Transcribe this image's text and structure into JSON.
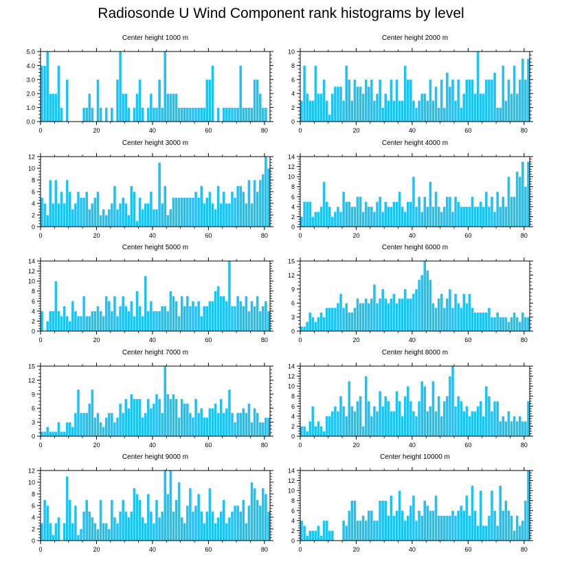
{
  "title": "Radiosonde U Wind Component rank histograms by level",
  "colors": {
    "bar": "#1ec2f5",
    "bar_edge": "#ffffff",
    "axis": "#000000"
  },
  "chart_data": [
    {
      "type": "bar",
      "title": "Center height 1000 m",
      "xlim": [
        0,
        82
      ],
      "ylim": [
        0,
        5
      ],
      "xticks": [
        0,
        20,
        40,
        60,
        80
      ],
      "yticks": [
        0,
        1,
        2,
        3,
        4,
        5
      ],
      "ytick_labels": [
        "0.0",
        "1.0",
        "2.0",
        "3.0",
        "4.0",
        "5.0"
      ],
      "values": [
        4,
        4,
        5,
        2,
        2,
        2,
        4,
        1,
        0,
        3,
        0,
        0,
        0,
        0,
        0,
        1,
        1,
        2,
        1,
        0,
        3,
        1,
        0,
        1,
        0,
        1,
        0,
        3,
        5,
        2,
        2,
        1,
        0,
        1,
        2,
        3,
        1,
        0,
        1,
        2,
        1,
        1,
        3,
        1,
        5,
        2,
        2,
        2,
        2,
        1,
        1,
        1,
        1,
        1,
        1,
        1,
        1,
        1,
        1,
        3,
        3,
        4,
        0,
        1,
        0,
        1,
        1,
        1,
        1,
        1,
        1,
        4,
        1,
        1,
        1,
        1,
        3,
        3,
        2,
        1,
        1,
        0
      ]
    },
    {
      "type": "bar",
      "title": "Center height 2000 m",
      "xlim": [
        0,
        82
      ],
      "ylim": [
        0,
        10
      ],
      "xticks": [
        0,
        20,
        40,
        60,
        80
      ],
      "yticks": [
        0,
        2,
        4,
        6,
        8,
        10
      ],
      "ytick_labels": [
        "0",
        "2",
        "4",
        "6",
        "8",
        "10"
      ],
      "values": [
        3,
        8,
        4,
        3,
        3,
        8,
        4,
        4,
        6,
        3,
        1,
        4,
        5,
        5,
        5,
        3,
        8,
        6,
        3,
        6,
        5,
        5,
        4,
        6,
        5,
        6,
        3,
        4,
        6,
        2,
        4,
        3,
        6,
        3,
        6,
        3,
        3,
        8,
        6,
        6,
        3,
        2,
        3,
        4,
        4,
        3,
        6,
        3,
        5,
        2,
        6,
        2,
        7,
        5,
        6,
        3,
        6,
        2,
        4,
        6,
        6,
        6,
        4,
        10,
        4,
        4,
        6,
        6,
        6,
        7,
        2,
        2,
        8,
        3,
        6,
        4,
        8,
        4,
        6,
        9,
        6,
        9
      ]
    },
    {
      "type": "bar",
      "title": "Center height 3000 m",
      "xlim": [
        0,
        82
      ],
      "ylim": [
        0,
        12
      ],
      "xticks": [
        0,
        20,
        40,
        60,
        80
      ],
      "yticks": [
        0,
        2,
        4,
        6,
        8,
        10,
        12
      ],
      "ytick_labels": [
        "0",
        "2",
        "4",
        "6",
        "8",
        "10",
        "12"
      ],
      "values": [
        5,
        4,
        2,
        8,
        4,
        8,
        4,
        6,
        4,
        8,
        6,
        3,
        4,
        6,
        5,
        5,
        6,
        3,
        4,
        5,
        6,
        2,
        3,
        2,
        3,
        4,
        7,
        3,
        4,
        5,
        4,
        2,
        7,
        6,
        1,
        5,
        3,
        4,
        4,
        6,
        3,
        3,
        11,
        4,
        7,
        2,
        3,
        5,
        5,
        5,
        5,
        5,
        5,
        5,
        5,
        6,
        5,
        7,
        4,
        5,
        6,
        4,
        3,
        7,
        4,
        6,
        4,
        4,
        6,
        5,
        7,
        7,
        6,
        4,
        8,
        4,
        8,
        6,
        8,
        9,
        12,
        10
      ]
    },
    {
      "type": "bar",
      "title": "Center height 4000 m",
      "xlim": [
        0,
        82
      ],
      "ylim": [
        0,
        14
      ],
      "xticks": [
        0,
        20,
        40,
        60,
        80
      ],
      "yticks": [
        0,
        2,
        4,
        6,
        8,
        10,
        12,
        14
      ],
      "ytick_labels": [
        "0",
        "2",
        "4",
        "6",
        "8",
        "10",
        "12",
        "14"
      ],
      "values": [
        2,
        5,
        5,
        5,
        2,
        3,
        3,
        4,
        9,
        5,
        4,
        2,
        3,
        4,
        3,
        7,
        5,
        5,
        4,
        4,
        6,
        6,
        3,
        5,
        4,
        4,
        3,
        5,
        6,
        3,
        5,
        4,
        4,
        5,
        5,
        7,
        4,
        3,
        5,
        5,
        10,
        4,
        6,
        3,
        6,
        4,
        9,
        4,
        7,
        4,
        3,
        4,
        6,
        6,
        3,
        6,
        5,
        4,
        4,
        4,
        4,
        6,
        4,
        4,
        5,
        4,
        7,
        4,
        6,
        3,
        7,
        4,
        6,
        4,
        10,
        6,
        6,
        11,
        10,
        13,
        8,
        13
      ]
    },
    {
      "type": "bar",
      "title": "Center height 5000 m",
      "xlim": [
        0,
        82
      ],
      "ylim": [
        0,
        14
      ],
      "xticks": [
        0,
        20,
        40,
        60,
        80
      ],
      "yticks": [
        0,
        2,
        4,
        6,
        8,
        10,
        12,
        14
      ],
      "ytick_labels": [
        "0",
        "2",
        "4",
        "6",
        "8",
        "10",
        "12",
        "14"
      ],
      "values": [
        4,
        0,
        2,
        4,
        4,
        10,
        4,
        3,
        5,
        3,
        2,
        6,
        4,
        3,
        3,
        7,
        3,
        3,
        4,
        4,
        5,
        4,
        3,
        7,
        6,
        4,
        7,
        3,
        5,
        7,
        5,
        4,
        6,
        3,
        8,
        5,
        3,
        11,
        4,
        6,
        4,
        4,
        4,
        5,
        5,
        4,
        8,
        7,
        6,
        3,
        7,
        5,
        7,
        5,
        6,
        5,
        6,
        3,
        5,
        5,
        6,
        6,
        8,
        9,
        7,
        7,
        6,
        14,
        5,
        5,
        7,
        6,
        5,
        7,
        4,
        6,
        5,
        7,
        4,
        5,
        6,
        4
      ]
    },
    {
      "type": "bar",
      "title": "Center height 6000 m",
      "xlim": [
        0,
        82
      ],
      "ylim": [
        0,
        15
      ],
      "xticks": [
        0,
        20,
        40,
        60,
        80
      ],
      "yticks": [
        0,
        3,
        6,
        9,
        12,
        15
      ],
      "ytick_labels": [
        "0",
        "3",
        "6",
        "9",
        "12",
        "15"
      ],
      "values": [
        1,
        1,
        2,
        4,
        3,
        2,
        3,
        4,
        3,
        5,
        5,
        5,
        5,
        6,
        8,
        5,
        6,
        4,
        4,
        5,
        7,
        6,
        6,
        7,
        6,
        7,
        10,
        6,
        7,
        9,
        7,
        6,
        7,
        8,
        6,
        7,
        7,
        9,
        7,
        7,
        8,
        9,
        11,
        12,
        15,
        13,
        11,
        6,
        5,
        7,
        8,
        5,
        7,
        9,
        5,
        8,
        6,
        5,
        8,
        6,
        8,
        5,
        4,
        4,
        4,
        4,
        4,
        5,
        3,
        3,
        4,
        3,
        3,
        3,
        2,
        3,
        4,
        3,
        2,
        4,
        3,
        3
      ]
    },
    {
      "type": "bar",
      "title": "Center height 7000 m",
      "xlim": [
        0,
        82
      ],
      "ylim": [
        0,
        15
      ],
      "xticks": [
        0,
        20,
        40,
        60,
        80
      ],
      "yticks": [
        0,
        3,
        6,
        9,
        12,
        15
      ],
      "ytick_labels": [
        "0",
        "3",
        "6",
        "9",
        "12",
        "15"
      ],
      "values": [
        1,
        1,
        2,
        1,
        1,
        1,
        3,
        1,
        1,
        3,
        3,
        2,
        5,
        10,
        5,
        5,
        5,
        7,
        10,
        4,
        5,
        3,
        2,
        4,
        5,
        5,
        3,
        4,
        7,
        5,
        8,
        6,
        9,
        8,
        8,
        8,
        4,
        5,
        8,
        6,
        7,
        9,
        8,
        5,
        15,
        9,
        8,
        9,
        8,
        4,
        8,
        7,
        7,
        5,
        4,
        8,
        5,
        6,
        4,
        4,
        6,
        6,
        7,
        5,
        8,
        5,
        6,
        10,
        5,
        3,
        5,
        5,
        6,
        5,
        7,
        3,
        6,
        5,
        3,
        3,
        4,
        4
      ]
    },
    {
      "type": "bar",
      "title": "Center height 8000 m",
      "xlim": [
        0,
        82
      ],
      "ylim": [
        0,
        14
      ],
      "xticks": [
        0,
        20,
        40,
        60,
        80
      ],
      "yticks": [
        0,
        2,
        4,
        6,
        8,
        10,
        12,
        14
      ],
      "ytick_labels": [
        "0",
        "2",
        "4",
        "6",
        "8",
        "10",
        "12",
        "14"
      ],
      "values": [
        2,
        2,
        1,
        3,
        6,
        2,
        3,
        2,
        1,
        4,
        4,
        5,
        6,
        5,
        8,
        6,
        4,
        11,
        6,
        5,
        7,
        8,
        2,
        12,
        7,
        4,
        6,
        5,
        9,
        6,
        8,
        7,
        5,
        5,
        9,
        7,
        4,
        8,
        10,
        7,
        5,
        4,
        7,
        11,
        10,
        5,
        6,
        11,
        5,
        8,
        4,
        7,
        8,
        12,
        14,
        6,
        8,
        7,
        5,
        6,
        4,
        5,
        5,
        6,
        7,
        4,
        10,
        8,
        5,
        7,
        7,
        3,
        4,
        3,
        5,
        3,
        4,
        3,
        4,
        3,
        3,
        7
      ]
    },
    {
      "type": "bar",
      "title": "Center height 9000 m",
      "xlim": [
        0,
        82
      ],
      "ylim": [
        0,
        12
      ],
      "xticks": [
        0,
        20,
        40,
        60,
        80
      ],
      "yticks": [
        0,
        2,
        4,
        6,
        8,
        10,
        12
      ],
      "ytick_labels": [
        "0",
        "2",
        "4",
        "6",
        "8",
        "10",
        "12"
      ],
      "values": [
        3,
        7,
        6,
        3,
        1,
        3,
        4,
        0,
        3,
        11,
        7,
        3,
        6,
        1,
        2,
        5,
        7,
        5,
        4,
        3,
        2,
        7,
        3,
        3,
        2,
        7,
        4,
        3,
        5,
        7,
        5,
        4,
        5,
        9,
        8,
        7,
        4,
        3,
        8,
        5,
        3,
        7,
        4,
        5,
        12,
        8,
        12,
        5,
        7,
        10,
        4,
        3,
        6,
        9,
        5,
        6,
        8,
        5,
        3,
        5,
        9,
        5,
        3,
        4,
        5,
        7,
        3,
        4,
        5,
        6,
        6,
        5,
        7,
        3,
        6,
        10,
        9,
        7,
        6,
        9,
        8,
        5
      ]
    },
    {
      "type": "bar",
      "title": "Center height 10000 m",
      "xlim": [
        0,
        82
      ],
      "ylim": [
        0,
        14
      ],
      "xticks": [
        0,
        20,
        40,
        60,
        80
      ],
      "yticks": [
        0,
        2,
        4,
        6,
        8,
        10,
        12,
        14
      ],
      "ytick_labels": [
        "0",
        "2",
        "4",
        "6",
        "8",
        "10",
        "12",
        "14"
      ],
      "values": [
        4,
        3,
        1,
        2,
        2,
        2,
        3,
        1,
        4,
        4,
        2,
        2,
        0,
        0,
        0,
        4,
        3,
        6,
        8,
        8,
        4,
        4,
        5,
        4,
        6,
        6,
        4,
        4,
        8,
        8,
        8,
        5,
        9,
        5,
        6,
        10,
        6,
        4,
        5,
        7,
        9,
        4,
        6,
        5,
        8,
        7,
        6,
        6,
        9,
        5,
        5,
        5,
        5,
        5,
        6,
        5,
        6,
        7,
        6,
        9,
        5,
        11,
        6,
        3,
        10,
        3,
        3,
        5,
        10,
        6,
        3,
        11,
        6,
        8,
        6,
        5,
        2,
        5,
        3,
        4,
        8,
        14
      ]
    }
  ]
}
